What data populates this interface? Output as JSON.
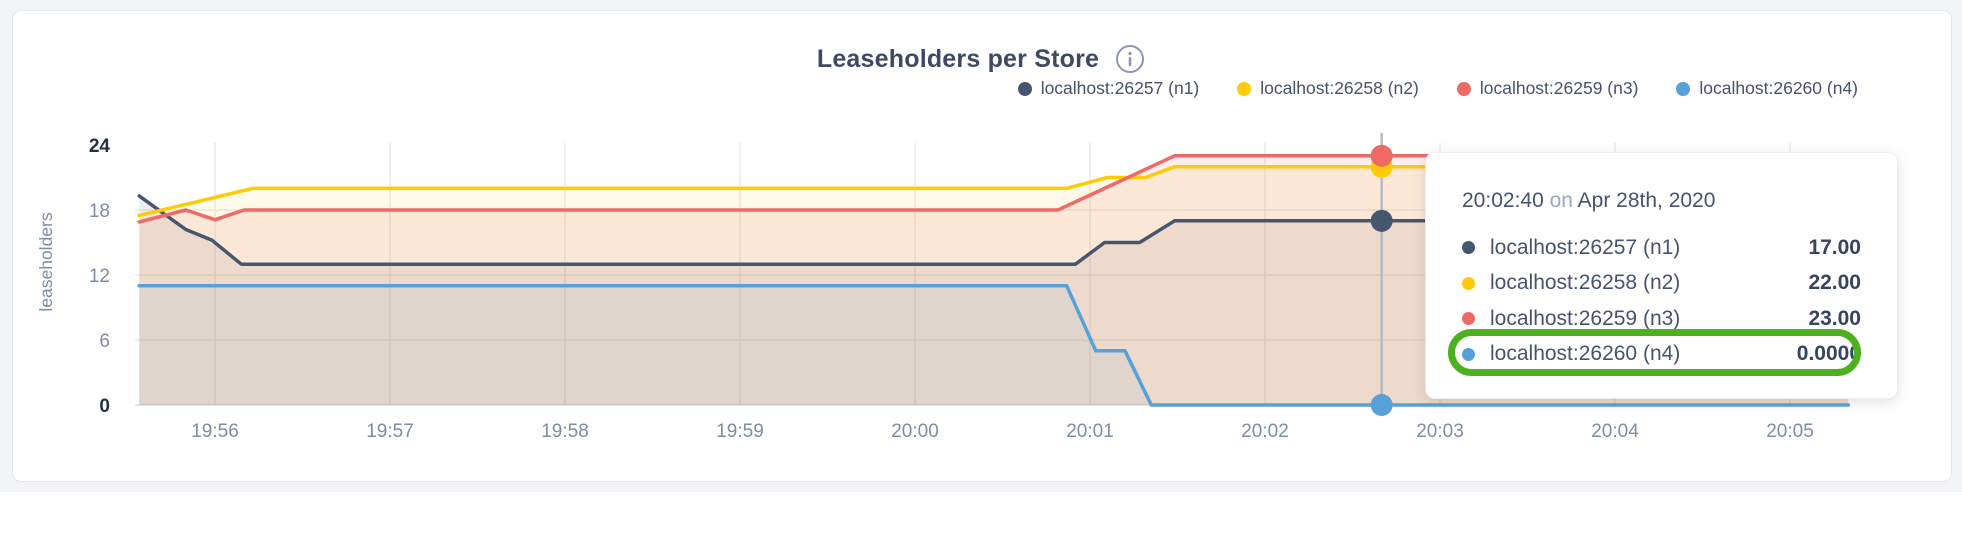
{
  "title": "Leaseholders per Store",
  "info_icon": "info-circle",
  "tooltip": {
    "time": "20:02:40",
    "on_word": "on",
    "date": "Apr 28th, 2020",
    "rows": [
      {
        "series_index": 0,
        "value": "17.00",
        "highlighted": false
      },
      {
        "series_index": 1,
        "value": "22.00",
        "highlighted": false
      },
      {
        "series_index": 2,
        "value": "23.00",
        "highlighted": false
      },
      {
        "series_index": 3,
        "value": "0.0000",
        "highlighted": true
      }
    ]
  },
  "annotation": {
    "shape": "oval-highlight",
    "color": "#4cb01f"
  },
  "chart_data": {
    "type": "line",
    "title": "Leaseholders per Store",
    "xlabel": "",
    "ylabel": "leaseholders",
    "ylim": [
      0,
      24
    ],
    "grid": true,
    "legend_position": "top-right",
    "y_ticks": [
      {
        "label": "24",
        "value": 24,
        "emphasis": true
      },
      {
        "label": "18",
        "value": 18,
        "emphasis": false
      },
      {
        "label": "12",
        "value": 12,
        "emphasis": false
      },
      {
        "label": "6",
        "value": 6,
        "emphasis": false
      },
      {
        "label": "0",
        "value": 0,
        "emphasis": true
      }
    ],
    "x_ticks": [
      "19:56",
      "19:57",
      "19:58",
      "19:59",
      "20:00",
      "20:01",
      "20:02",
      "20:03",
      "20:04",
      "20:05"
    ],
    "series": [
      {
        "name": "localhost:26257 (n1)",
        "color": "#47566f",
        "fill_opacity": 0.1,
        "points": [
          [
            "19:55:34",
            19.3
          ],
          [
            "19:55:50",
            16.2
          ],
          [
            "19:55:59",
            15.2
          ],
          [
            "19:56:09",
            13
          ],
          [
            "20:00:55",
            13
          ],
          [
            "20:01:05",
            15
          ],
          [
            "20:01:17",
            15
          ],
          [
            "20:01:29",
            17
          ],
          [
            "20:05:20",
            17
          ]
        ]
      },
      {
        "name": "localhost:26258 (n2)",
        "color": "#fecb06",
        "fill_opacity": 0.09,
        "points": [
          [
            "19:55:34",
            17.5
          ],
          [
            "19:56:13",
            20
          ],
          [
            "20:00:52",
            20
          ],
          [
            "20:01:06",
            21
          ],
          [
            "20:01:19",
            21
          ],
          [
            "20:01:29",
            22
          ],
          [
            "20:05:20",
            22
          ]
        ]
      },
      {
        "name": "localhost:26259 (n3)",
        "color": "#ef6a64",
        "fill_opacity": 0.12,
        "points": [
          [
            "19:55:34",
            16.9
          ],
          [
            "19:55:50",
            18
          ],
          [
            "19:56:00",
            17.1
          ],
          [
            "19:56:10",
            18
          ],
          [
            "20:00:49",
            18
          ],
          [
            "20:01:29",
            23
          ],
          [
            "20:05:20",
            23
          ]
        ]
      },
      {
        "name": "localhost:26260 (n4)",
        "color": "#56a1d8",
        "fill_opacity": 0.09,
        "points": [
          [
            "19:55:34",
            11
          ],
          [
            "20:00:52",
            11
          ],
          [
            "20:01:02",
            5
          ],
          [
            "20:01:12",
            5
          ],
          [
            "20:01:21",
            0
          ],
          [
            "20:05:20",
            0
          ]
        ]
      }
    ],
    "hover": {
      "time": "20:02:40",
      "values": [
        17,
        22,
        23,
        0
      ]
    }
  }
}
